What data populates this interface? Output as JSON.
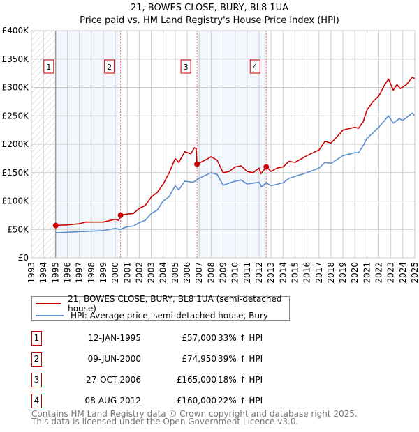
{
  "chart_data": {
    "type": "line",
    "title": "21, BOWES CLOSE, BURY, BL8 1UA",
    "subtitle": "Price paid vs. HM Land Registry's House Price Index (HPI)",
    "xlim": [
      1993,
      2025
    ],
    "ylim": [
      0,
      400000
    ],
    "x_ticks": [
      "1993",
      "1994",
      "1995",
      "1996",
      "1997",
      "1998",
      "1999",
      "2000",
      "2001",
      "2002",
      "2003",
      "2004",
      "2005",
      "2006",
      "2007",
      "2008",
      "2009",
      "2010",
      "2011",
      "2012",
      "2013",
      "2014",
      "2015",
      "2016",
      "2017",
      "2018",
      "2019",
      "2020",
      "2021",
      "2022",
      "2023",
      "2024",
      "2025"
    ],
    "y_ticks": [
      {
        "v": 0,
        "label": "£0"
      },
      {
        "v": 50000,
        "label": "£50K"
      },
      {
        "v": 100000,
        "label": "£100K"
      },
      {
        "v": 150000,
        "label": "£150K"
      },
      {
        "v": 200000,
        "label": "£200K"
      },
      {
        "v": 250000,
        "label": "£250K"
      },
      {
        "v": 300000,
        "label": "£300K"
      },
      {
        "v": 350000,
        "label": "£350K"
      },
      {
        "v": 400000,
        "label": "£400K"
      }
    ],
    "grid": true,
    "series": [
      {
        "name": "21, BOWES CLOSE, BURY, BL8 1UA (semi-detached house)",
        "color": "#cc0000",
        "x": [
          1995.03,
          1996,
          1997,
          1997.5,
          1998,
          1999,
          2000,
          2000.3,
          2000.44,
          2001,
          2001.5,
          2002,
          2002.5,
          2003,
          2003.5,
          2004,
          2004.5,
          2005,
          2005.3,
          2005.8,
          2006.3,
          2006.6,
          2006.75,
          2006.82,
          2007.5,
          2008,
          2008.5,
          2009,
          2009.5,
          2010,
          2010.5,
          2011,
          2011.5,
          2012,
          2012.15,
          2012.6,
          2013,
          2013.5,
          2014,
          2014.5,
          2015,
          2016,
          2017,
          2017.5,
          2018,
          2018.5,
          2019,
          2020,
          2020.3,
          2020.7,
          2021,
          2021.5,
          2022,
          2022.5,
          2022.8,
          2023.2,
          2023.5,
          2023.8,
          2024.3,
          2024.8,
          2025
        ],
        "y": [
          57000,
          58000,
          60000,
          63000,
          63000,
          63000,
          68000,
          66000,
          74950,
          77000,
          78000,
          87000,
          92000,
          107000,
          115000,
          130000,
          150000,
          175000,
          168000,
          187000,
          183000,
          194000,
          192000,
          165000,
          172000,
          178000,
          172000,
          150000,
          152000,
          160000,
          162000,
          152000,
          150000,
          158000,
          148000,
          160000,
          152000,
          158000,
          160000,
          170000,
          168000,
          180000,
          190000,
          205000,
          202000,
          213000,
          225000,
          230000,
          228000,
          240000,
          260000,
          275000,
          285000,
          305000,
          315000,
          295000,
          305000,
          298000,
          305000,
          318000,
          315000
        ]
      },
      {
        "name": "HPI: Average price, semi-detached house, Bury",
        "color": "#5b8fd0",
        "x": [
          1995.03,
          1996,
          1997,
          1998,
          1999,
          2000,
          2000.4,
          2001,
          2001.5,
          2002,
          2002.5,
          2003,
          2003.5,
          2004,
          2004.5,
          2005,
          2005.3,
          2005.8,
          2006.5,
          2007,
          2008,
          2008.5,
          2009,
          2010,
          2010.5,
          2011,
          2012,
          2012.2,
          2012.6,
          2013,
          2014,
          2014.5,
          2016,
          2017,
          2017.5,
          2018,
          2019,
          2020,
          2020.3,
          2020.7,
          2021,
          2022,
          2022.8,
          2023.2,
          2023.7,
          2024,
          2024.8,
          2025
        ],
        "y": [
          44000,
          45000,
          46000,
          47000,
          48000,
          52000,
          50000,
          55000,
          56000,
          62000,
          66000,
          78000,
          84000,
          100000,
          108000,
          127000,
          120000,
          135000,
          133000,
          140000,
          150000,
          147000,
          128000,
          135000,
          137000,
          130000,
          133000,
          125000,
          132000,
          127000,
          132000,
          140000,
          150000,
          158000,
          168000,
          166000,
          180000,
          185000,
          185000,
          198000,
          210000,
          230000,
          250000,
          237000,
          245000,
          242000,
          255000,
          250000
        ]
      }
    ],
    "sales": [
      {
        "id": "1",
        "x": 1995.03,
        "date": "12-JAN-1995",
        "price_value": 57000,
        "price": "£57,000",
        "hpi": "33% ↑ HPI"
      },
      {
        "id": "2",
        "x": 2000.44,
        "date": "09-JUN-2000",
        "price_value": 74950,
        "price": "£74,950",
        "hpi": "39% ↑ HPI"
      },
      {
        "id": "3",
        "x": 2006.82,
        "date": "27-OCT-2006",
        "price_value": 165000,
        "price": "£165,000",
        "hpi": "18% ↑ HPI"
      },
      {
        "id": "4",
        "x": 2012.6,
        "date": "08-AUG-2012",
        "price_value": 160000,
        "price": "£160,000",
        "hpi": "22% ↑ HPI"
      }
    ],
    "legend_position": "bottom"
  },
  "footer": {
    "line1": "Contains HM Land Registry data © Crown copyright and database right 2025.",
    "line2": "This data is licensed under the Open Government Licence v3.0."
  }
}
